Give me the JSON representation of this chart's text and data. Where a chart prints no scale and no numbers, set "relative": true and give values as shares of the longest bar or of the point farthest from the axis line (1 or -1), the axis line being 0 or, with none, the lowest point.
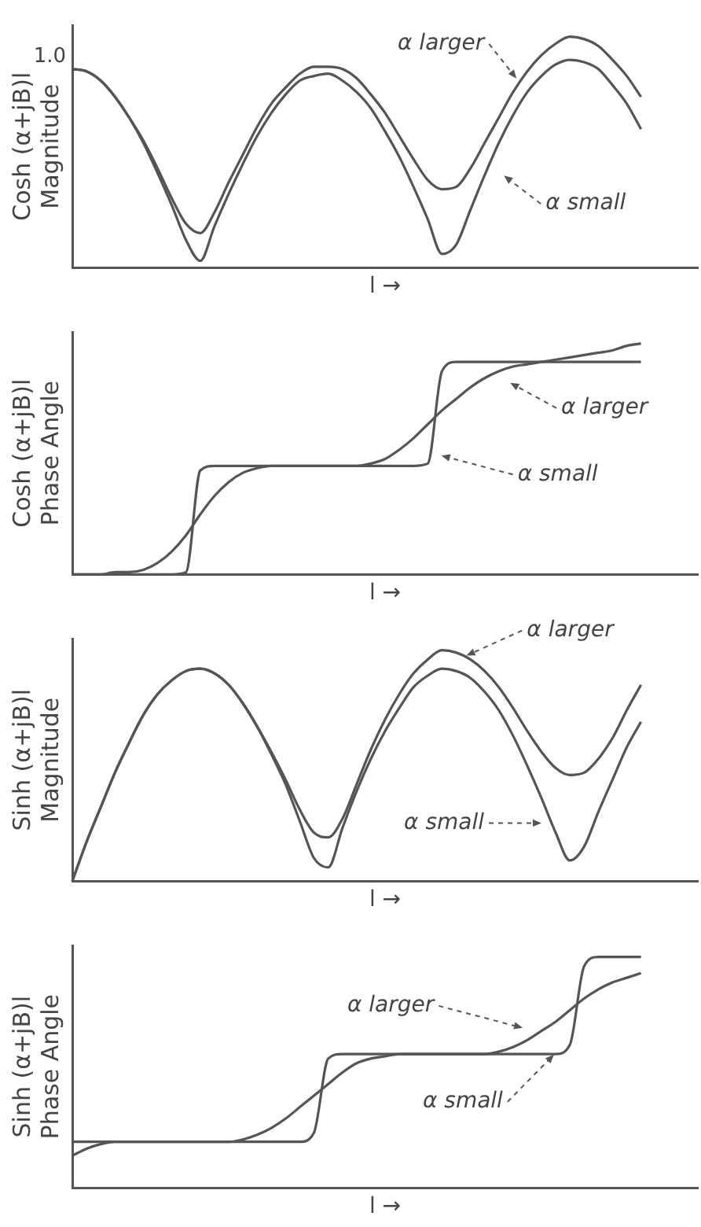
{
  "chart_data": [
    {
      "type": "line",
      "relative": true,
      "tick_labels": false,
      "grid": false,
      "legend": false,
      "marker": "none",
      "line_style": "solid",
      "ylabel": "Cosh (α+jB)l\nMagnitude",
      "xlabel": "l →",
      "categories": [
        null,
        null,
        null,
        null,
        null,
        null,
        null,
        null,
        null,
        null,
        null,
        null,
        null,
        null,
        null,
        null,
        null,
        null,
        null,
        null,
        null,
        null,
        null,
        null,
        null,
        null,
        null,
        null,
        null,
        null,
        null,
        null,
        null,
        null,
        null,
        null,
        null,
        null,
        null,
        null,
        null,
        null,
        null,
        null,
        null
      ],
      "series": [
        {
          "color": "#555555",
          "values": [
            0.86,
            0.85,
            0.81,
            0.74,
            0.65,
            0.55,
            0.43,
            0.3,
            0.19,
            0.15,
            0.24,
            0.37,
            0.49,
            0.61,
            0.71,
            0.78,
            0.84,
            0.87,
            0.87,
            0.86,
            0.82,
            0.75,
            0.67,
            0.57,
            0.47,
            0.38,
            0.34,
            0.35,
            0.43,
            0.54,
            0.65,
            0.76,
            0.85,
            0.92,
            0.97,
            1.0,
            0.99,
            0.96,
            0.9,
            0.83,
            0.74,
            null,
            null,
            null,
            null
          ]
        },
        {
          "color": "#555555",
          "values": [
            0.86,
            0.85,
            0.81,
            0.74,
            0.65,
            0.54,
            0.41,
            0.27,
            0.12,
            0.03,
            0.18,
            0.32,
            0.45,
            0.57,
            0.67,
            0.75,
            0.81,
            0.83,
            0.84,
            0.81,
            0.76,
            0.69,
            0.59,
            0.48,
            0.35,
            0.21,
            0.06,
            0.1,
            0.25,
            0.4,
            0.54,
            0.66,
            0.76,
            0.83,
            0.88,
            0.9,
            0.89,
            0.86,
            0.79,
            0.71,
            0.6,
            null,
            null,
            null,
            null
          ]
        }
      ],
      "annotations": [
        "1.0",
        "α larger",
        "α small"
      ]
    },
    {
      "type": "line",
      "relative": true,
      "tick_labels": false,
      "grid": false,
      "legend": false,
      "marker": "none",
      "line_style": "solid",
      "ylabel": "Cosh (α+jB)l\nPhase Angle",
      "xlabel": "l →",
      "categories": [
        null,
        null,
        null,
        null,
        null,
        null,
        null,
        null,
        null,
        null,
        null,
        null,
        null,
        null,
        null,
        null,
        null,
        null,
        null,
        null,
        null,
        null,
        null,
        null,
        null,
        null,
        null,
        null,
        null,
        null,
        null,
        null,
        null,
        null,
        null,
        null,
        null,
        null,
        null,
        null,
        null,
        null,
        null,
        null,
        null
      ],
      "series": [
        {
          "color": "#555555",
          "values": [
            0,
            0,
            0,
            0.01,
            0.01,
            0.02,
            0.05,
            0.1,
            0.17,
            0.26,
            0.34,
            0.4,
            0.44,
            0.46,
            0.47,
            0.47,
            0.47,
            0.47,
            0.47,
            0.47,
            0.47,
            0.48,
            0.5,
            0.54,
            0.59,
            0.65,
            0.71,
            0.76,
            0.81,
            0.85,
            0.88,
            0.9,
            0.91,
            0.92,
            0.93,
            0.94,
            0.95,
            0.96,
            0.97,
            0.99,
            1.0,
            null,
            null,
            null,
            null
          ]
        },
        {
          "color": "#555555",
          "values": [
            0,
            0,
            0,
            0,
            0,
            0,
            0,
            0,
            0.01,
            0.45,
            0.47,
            0.47,
            0.47,
            0.47,
            0.47,
            0.47,
            0.47,
            0.47,
            0.47,
            0.47,
            0.47,
            0.47,
            0.47,
            0.47,
            0.47,
            0.48,
            0.88,
            0.92,
            0.92,
            0.92,
            0.92,
            0.92,
            0.92,
            0.92,
            0.92,
            0.92,
            0.92,
            0.92,
            0.92,
            0.92,
            0.92,
            null,
            null,
            null,
            null
          ]
        }
      ],
      "annotations": [
        "α larger",
        "α small"
      ]
    },
    {
      "type": "line",
      "relative": true,
      "tick_labels": false,
      "grid": false,
      "legend": false,
      "marker": "none",
      "line_style": "solid",
      "ylabel": "Sinh (α+jB)l\nMagnitude",
      "xlabel": "l →",
      "categories": [
        null,
        null,
        null,
        null,
        null,
        null,
        null,
        null,
        null,
        null,
        null,
        null,
        null,
        null,
        null,
        null,
        null,
        null,
        null,
        null,
        null,
        null,
        null,
        null,
        null,
        null,
        null,
        null,
        null,
        null,
        null,
        null,
        null,
        null,
        null,
        null,
        null,
        null,
        null,
        null,
        null,
        null,
        null,
        null,
        null
      ],
      "series": [
        {
          "color": "#555555",
          "values": [
            0,
            0.17,
            0.32,
            0.47,
            0.6,
            0.72,
            0.81,
            0.87,
            0.91,
            0.92,
            0.9,
            0.85,
            0.77,
            0.67,
            0.56,
            0.44,
            0.31,
            0.21,
            0.19,
            0.27,
            0.42,
            0.57,
            0.7,
            0.81,
            0.9,
            0.96,
            1.0,
            0.99,
            0.96,
            0.91,
            0.84,
            0.75,
            0.65,
            0.56,
            0.49,
            0.46,
            0.47,
            0.53,
            0.62,
            0.74,
            0.85,
            null,
            null,
            null,
            null
          ]
        },
        {
          "color": "#555555",
          "values": [
            0,
            0.17,
            0.32,
            0.47,
            0.6,
            0.72,
            0.81,
            0.87,
            0.91,
            0.92,
            0.9,
            0.85,
            0.77,
            0.67,
            0.55,
            0.42,
            0.26,
            0.1,
            0.06,
            0.23,
            0.39,
            0.53,
            0.65,
            0.75,
            0.84,
            0.89,
            0.92,
            0.91,
            0.88,
            0.82,
            0.74,
            0.63,
            0.5,
            0.36,
            0.21,
            0.09,
            0.15,
            0.3,
            0.44,
            0.58,
            0.69,
            null,
            null,
            null,
            null
          ]
        }
      ],
      "annotations": [
        "α larger",
        "α small"
      ]
    },
    {
      "type": "line",
      "relative": true,
      "tick_labels": false,
      "grid": false,
      "legend": false,
      "marker": "none",
      "line_style": "solid",
      "ylabel": "Sinh (α+jB)l\nPhase Angle",
      "xlabel": "l →",
      "categories": [
        null,
        null,
        null,
        null,
        null,
        null,
        null,
        null,
        null,
        null,
        null,
        null,
        null,
        null,
        null,
        null,
        null,
        null,
        null,
        null,
        null,
        null,
        null,
        null,
        null,
        null,
        null,
        null,
        null,
        null,
        null,
        null,
        null,
        null,
        null,
        null,
        null,
        null,
        null,
        null,
        null,
        null,
        null,
        null,
        null
      ],
      "series": [
        {
          "color": "#555555",
          "values": [
            0.14,
            0.17,
            0.19,
            0.2,
            0.2,
            0.2,
            0.2,
            0.2,
            0.2,
            0.2,
            0.2,
            0.2,
            0.21,
            0.23,
            0.26,
            0.3,
            0.35,
            0.4,
            0.45,
            0.5,
            0.54,
            0.56,
            0.57,
            0.58,
            0.58,
            0.58,
            0.58,
            0.58,
            0.58,
            0.58,
            0.59,
            0.61,
            0.64,
            0.68,
            0.72,
            0.77,
            0.82,
            0.86,
            0.89,
            0.91,
            0.93,
            null,
            null,
            null,
            null
          ]
        },
        {
          "color": "#555555",
          "values": [
            0.2,
            0.2,
            0.2,
            0.2,
            0.2,
            0.2,
            0.2,
            0.2,
            0.2,
            0.2,
            0.2,
            0.2,
            0.2,
            0.2,
            0.2,
            0.2,
            0.2,
            0.24,
            0.56,
            0.58,
            0.58,
            0.58,
            0.58,
            0.58,
            0.58,
            0.58,
            0.58,
            0.58,
            0.58,
            0.58,
            0.58,
            0.58,
            0.58,
            0.58,
            0.58,
            0.62,
            0.96,
            1.0,
            1.0,
            1.0,
            1.0,
            null,
            null,
            null,
            null
          ]
        }
      ],
      "annotations": [
        "α larger",
        "α small"
      ]
    }
  ]
}
